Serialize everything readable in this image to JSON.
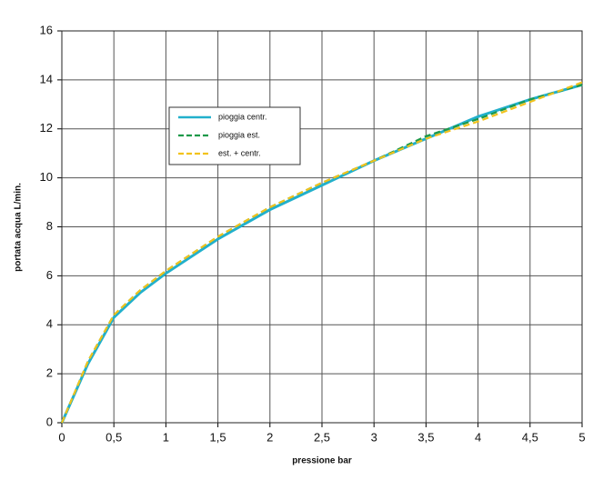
{
  "chart_data": {
    "type": "line",
    "x_label": "pressione  bar",
    "y_label": "portata acqua  L/min.",
    "x": [
      0,
      0.25,
      0.5,
      0.75,
      1,
      1.5,
      2,
      2.5,
      3,
      3.5,
      4,
      4.5,
      5
    ],
    "series": [
      {
        "name": "pioggia centr.",
        "color": "#22b0cc",
        "dashed": false,
        "values": [
          0,
          2.4,
          4.3,
          5.3,
          6.1,
          7.5,
          8.7,
          9.7,
          10.7,
          11.6,
          12.5,
          13.2,
          13.8
        ]
      },
      {
        "name": "pioggia est.",
        "color": "#1e9a4a",
        "dashed": true,
        "values": [
          0,
          2.5,
          4.4,
          5.4,
          6.2,
          7.6,
          8.8,
          9.8,
          10.7,
          11.7,
          12.4,
          13.2,
          13.8
        ]
      },
      {
        "name": "est. + centr.",
        "color": "#f2c21c",
        "dashed": true,
        "values": [
          0,
          2.5,
          4.4,
          5.4,
          6.2,
          7.6,
          8.8,
          9.8,
          10.7,
          11.6,
          12.3,
          13.1,
          13.9
        ]
      }
    ],
    "xlim": [
      0,
      5
    ],
    "xticks": [
      0,
      {
        "value": 0.5,
        "label": "0,5"
      },
      1,
      {
        "value": 1.5,
        "label": "1,5"
      },
      2,
      {
        "value": 2.5,
        "label": "2,5"
      },
      3,
      {
        "value": 3.5,
        "label": "3,5"
      },
      4,
      {
        "value": 4.5,
        "label": "4,5"
      },
      5
    ],
    "ylim": [
      0,
      16
    ],
    "yticks": [
      0,
      2,
      4,
      6,
      8,
      10,
      12,
      14,
      16
    ],
    "grid": true,
    "legend": "upper left"
  }
}
